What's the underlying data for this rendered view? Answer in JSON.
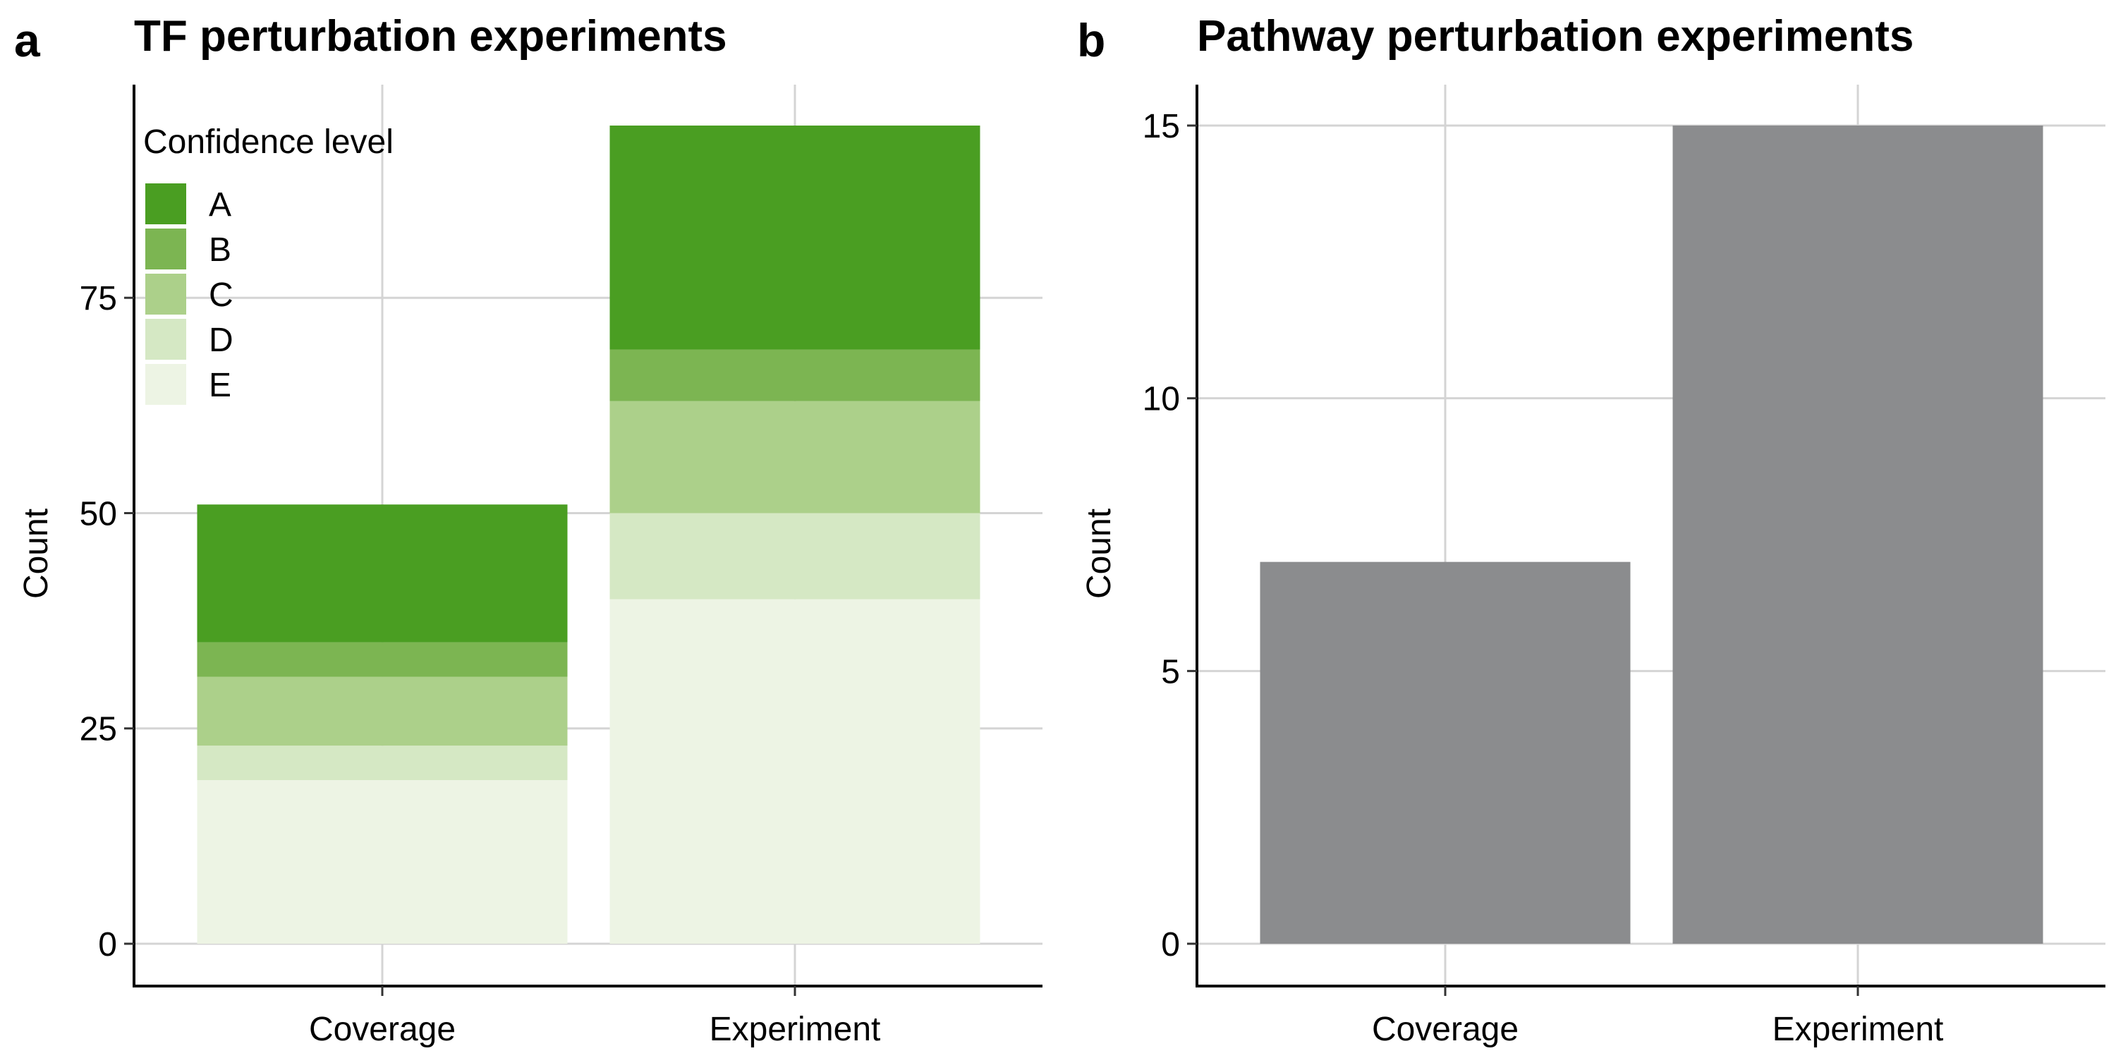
{
  "chart_data": [
    {
      "type": "bar",
      "panel_label": "a",
      "title": "TF perturbation experiments",
      "xlabel": "",
      "ylabel": "Count",
      "categories": [
        "Coverage",
        "Experiment"
      ],
      "stacked": true,
      "ylim": [
        0,
        95
      ],
      "yticks": [
        0,
        25,
        50,
        75
      ],
      "grid": true,
      "legend": {
        "title": "Confidence level",
        "position": "top-left"
      },
      "series": [
        {
          "name": "E",
          "values": [
            19,
            40
          ],
          "color": "#edf4e4"
        },
        {
          "name": "D",
          "values": [
            4,
            10
          ],
          "color": "#d5e8c4"
        },
        {
          "name": "C",
          "values": [
            8,
            13
          ],
          "color": "#acd08a"
        },
        {
          "name": "B",
          "values": [
            4,
            6
          ],
          "color": "#7cb552"
        },
        {
          "name": "A",
          "values": [
            16,
            26
          ],
          "color": "#4a9e22"
        }
      ]
    },
    {
      "type": "bar",
      "panel_label": "b",
      "title": "Pathway perturbation experiments",
      "xlabel": "",
      "ylabel": "Count",
      "categories": [
        "Coverage",
        "Experiment"
      ],
      "values": [
        7,
        15
      ],
      "color": "#8b8c8e",
      "ylim": [
        0,
        15
      ],
      "yticks": [
        0,
        5,
        10,
        15
      ],
      "grid": true
    }
  ]
}
